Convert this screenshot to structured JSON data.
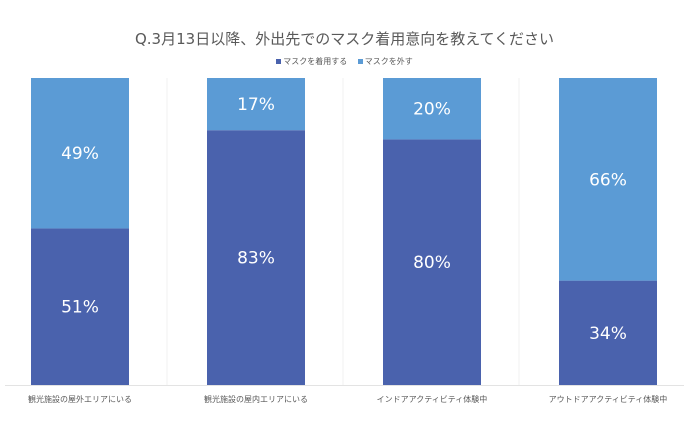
{
  "chart_data": {
    "type": "bar",
    "stacked": true,
    "title": "Q.3月13日以降、外出先でのマスク着用意向を教えてください",
    "categories": [
      "観光施設の屋外エリアにいる",
      "観光施設の屋内エリアにいる",
      "インドアアクティビティ体験中",
      "アウトドアアクティビティ体験中"
    ],
    "series": [
      {
        "name": "マスクを着用する",
        "values": [
          51,
          83,
          80,
          34
        ],
        "color": "#4a62ad"
      },
      {
        "name": "マスクを外す",
        "values": [
          49,
          17,
          20,
          66
        ],
        "color": "#5b9bd5"
      }
    ],
    "ylim": [
      0,
      100
    ],
    "value_format": "percent",
    "legend": "top",
    "grid": false
  }
}
